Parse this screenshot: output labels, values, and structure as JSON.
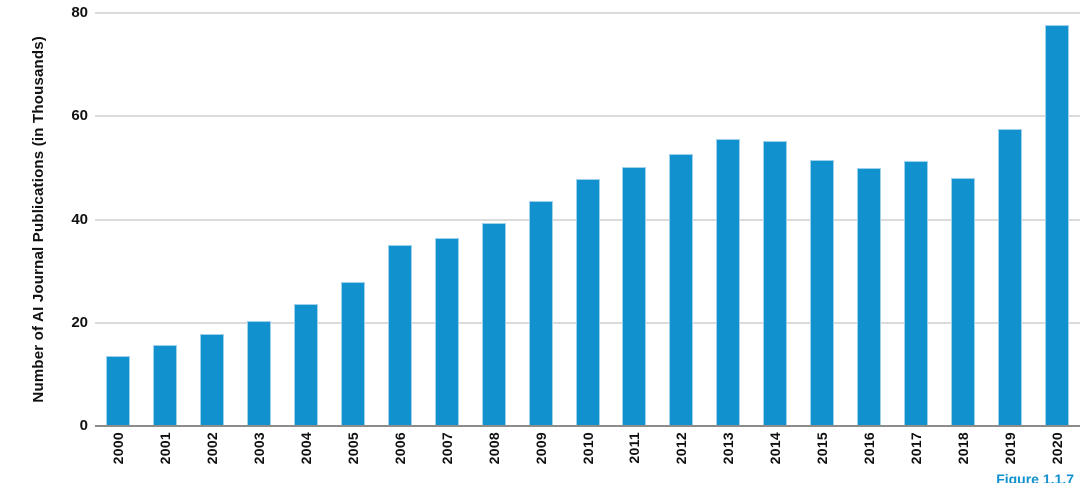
{
  "accent_color": "#1191ce",
  "caption": {
    "text": "Figure 1.1.7"
  },
  "chart_data": {
    "type": "bar",
    "title": "",
    "xlabel": "",
    "ylabel": "Number of AI Journal Publications (in Thousands)",
    "categories": [
      "2000",
      "2001",
      "2002",
      "2003",
      "2004",
      "2005",
      "2006",
      "2007",
      "2008",
      "2009",
      "2010",
      "2011",
      "2012",
      "2013",
      "2014",
      "2015",
      "2016",
      "2017",
      "2018",
      "2019",
      "2020"
    ],
    "values": [
      13.6,
      15.7,
      17.8,
      20.3,
      23.6,
      27.9,
      35.0,
      36.4,
      39.3,
      43.5,
      47.9,
      50.2,
      52.6,
      55.5,
      55.2,
      51.5,
      50.0,
      51.4,
      48.0,
      57.6,
      77.6
    ],
    "ylim": [
      0,
      80
    ],
    "yticks": [
      0,
      20,
      40,
      60,
      80
    ],
    "grid": "horizontal",
    "legend_position": "none",
    "bar_color": "#1191ce",
    "bar_border_color": "#9fd0ec",
    "gridline_color": "#dbdbdb",
    "axis_line_color": "#8c8c8c"
  }
}
